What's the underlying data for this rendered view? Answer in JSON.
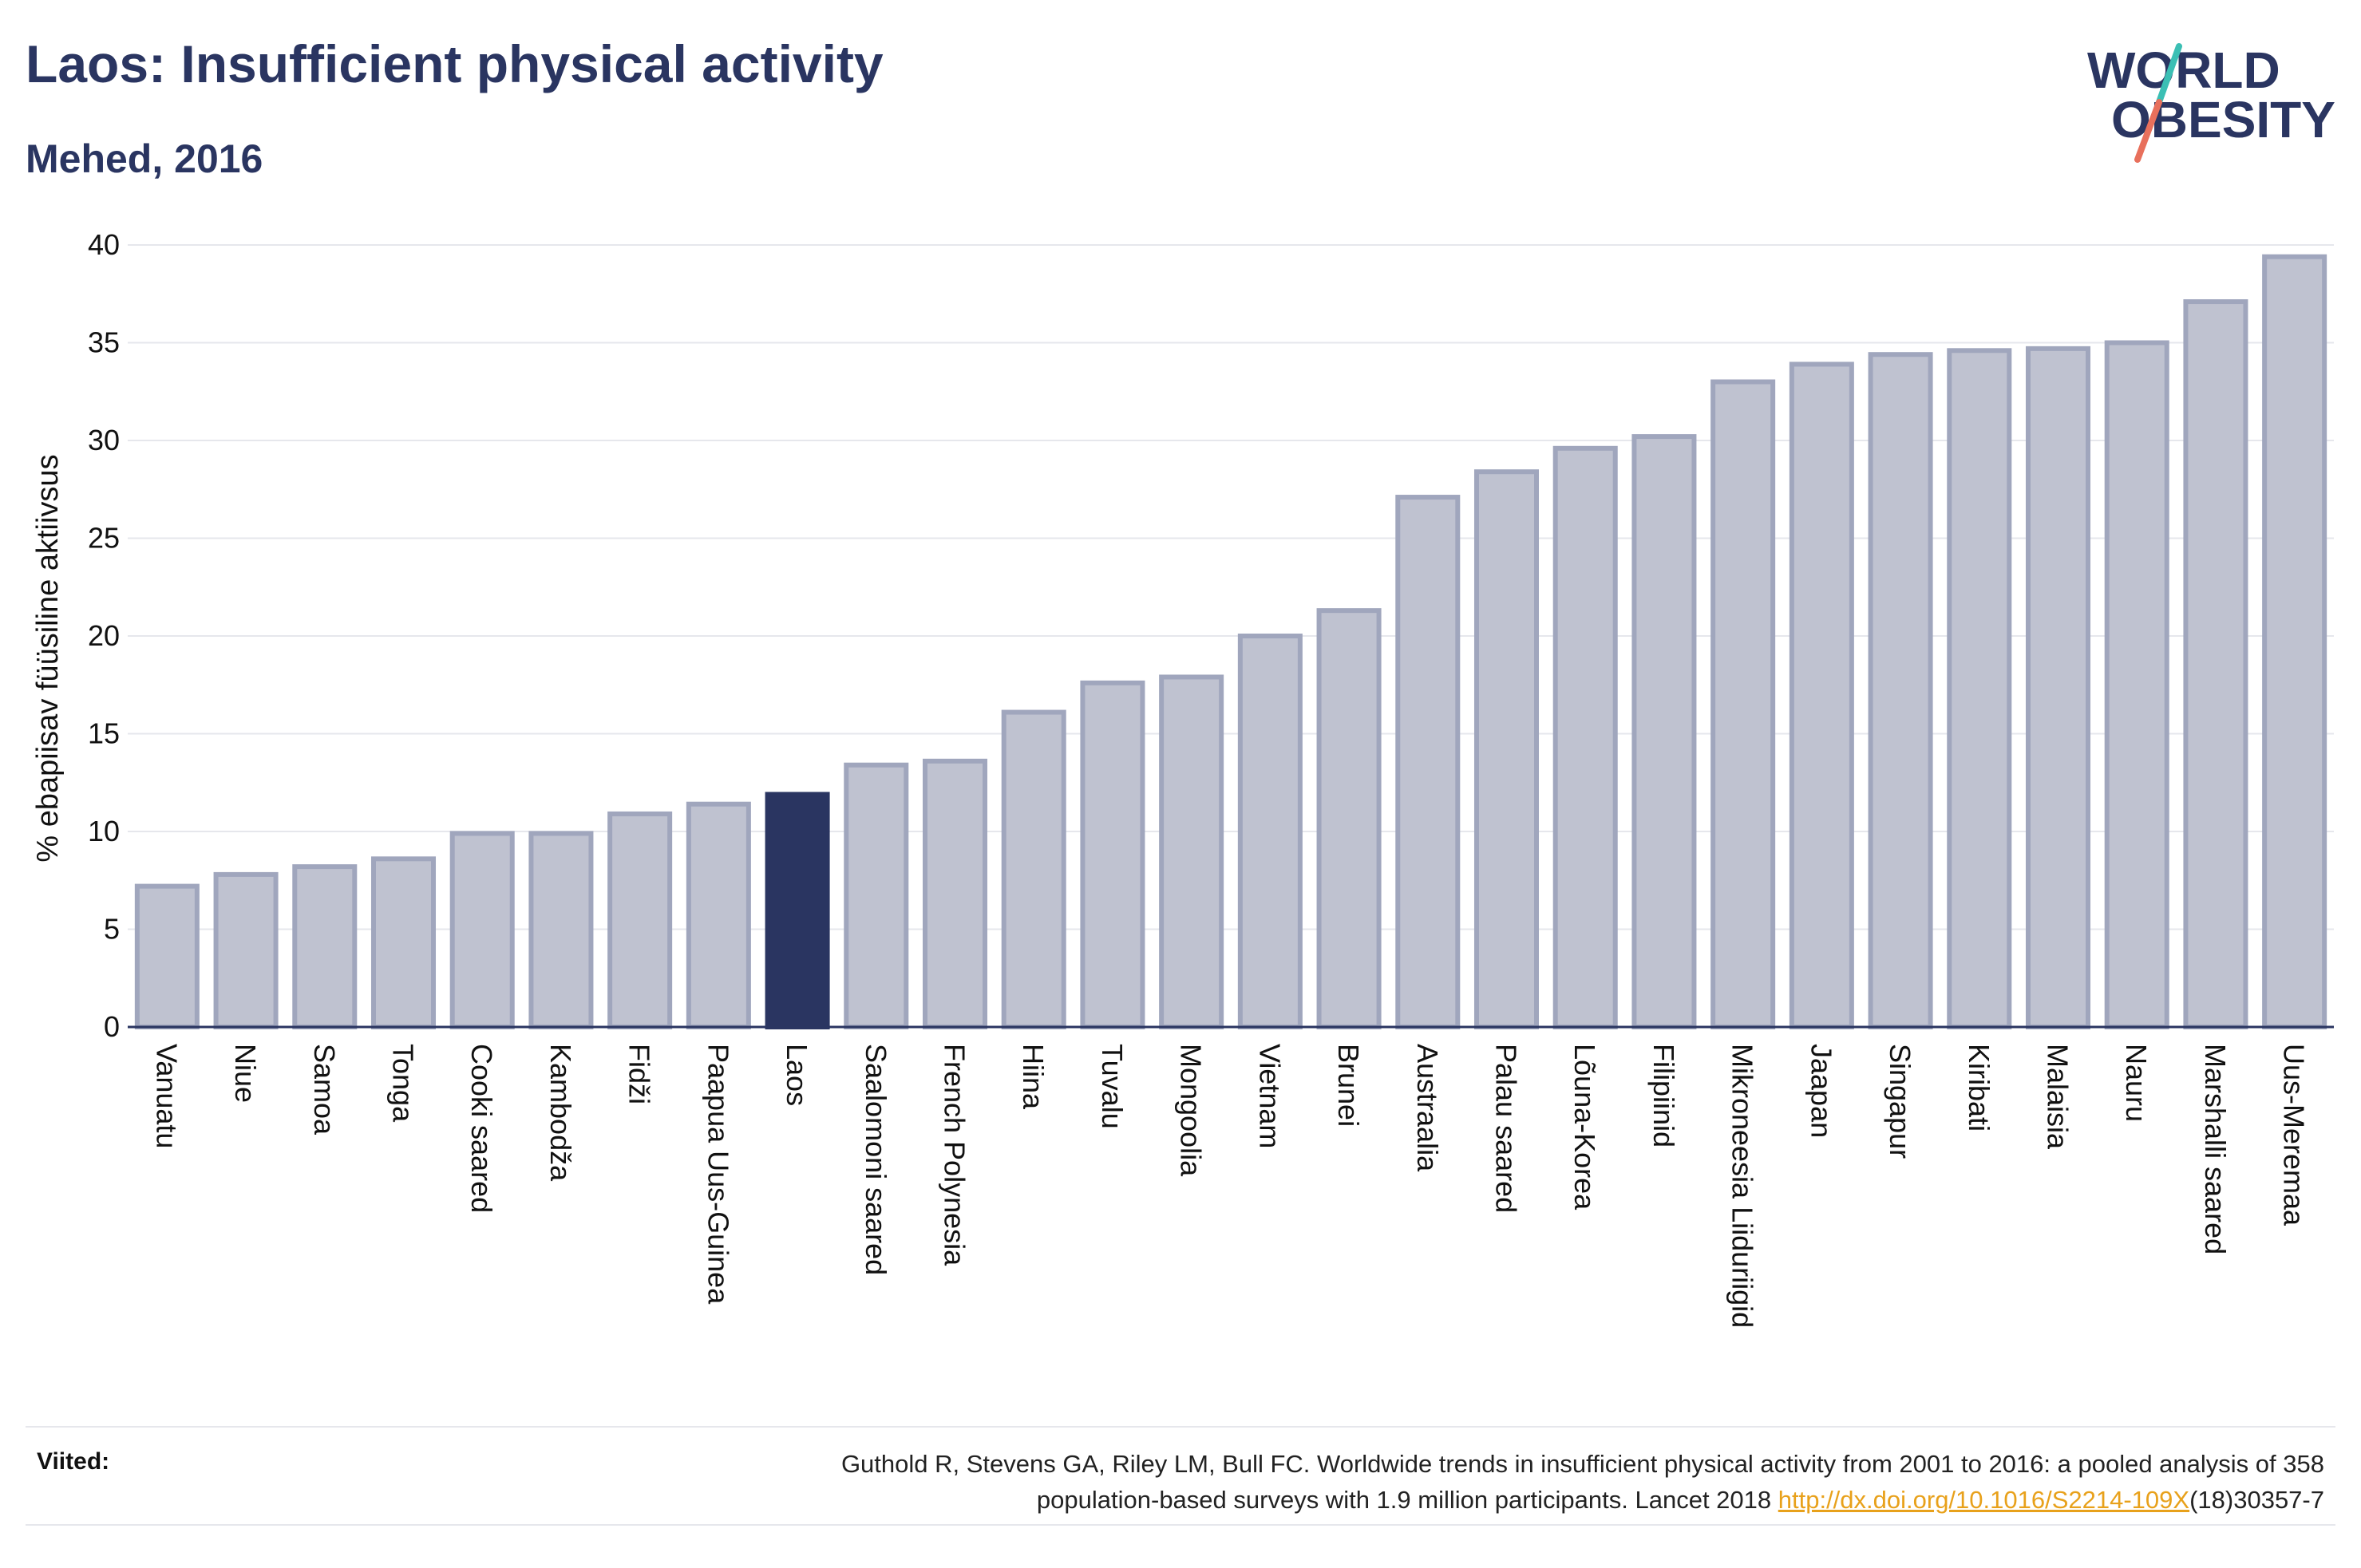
{
  "header": {
    "title": "Laos: Insufficient physical activity",
    "subtitle": "Mehed, 2016"
  },
  "logo": {
    "line1": "WORLD",
    "line2": "OBESITY",
    "icon": "slash-mark-icon"
  },
  "colors": {
    "bar": "#bfc2d0",
    "bar_border": "#a0a6bd",
    "highlight": "#2a3561",
    "grid": "#e6e7ec",
    "text": "#2a3561",
    "link": "#e8a11b"
  },
  "chart_data": {
    "type": "bar",
    "title": "Laos: Insufficient physical activity",
    "subtitle": "Mehed, 2016",
    "xlabel": "",
    "ylabel": "% ebapiisav füüsiline aktiivsus",
    "ylim": [
      0,
      40
    ],
    "yticks": [
      0,
      5,
      10,
      15,
      20,
      25,
      30,
      35,
      40
    ],
    "grid": true,
    "highlight": "Laos",
    "categories": [
      "Vanuatu",
      "Niue",
      "Samoa",
      "Tonga",
      "Cooki saared",
      "Kambodža",
      "Fidži",
      "Paapua Uus-Guinea",
      "Laos",
      "Saalomoni saared",
      "French Polynesia",
      "Hiina",
      "Tuvalu",
      "Mongoolia",
      "Vietnam",
      "Brunei",
      "Austraalia",
      "Palau saared",
      "Lõuna-Korea",
      "Filipiinid",
      "Mikroneesia Liiduriigid",
      "Jaapan",
      "Singapur",
      "Kiribati",
      "Malaisia",
      "Nauru",
      "Marshalli saared",
      "Uus-Meremaa"
    ],
    "values": [
      7.2,
      7.8,
      8.2,
      8.6,
      9.9,
      9.9,
      10.9,
      11.4,
      11.9,
      13.4,
      13.6,
      16.1,
      17.6,
      17.9,
      20.0,
      21.3,
      27.1,
      28.4,
      29.6,
      30.2,
      33.0,
      33.9,
      34.4,
      34.6,
      34.7,
      35.0,
      37.1,
      39.4
    ]
  },
  "footer": {
    "label": "Viited:",
    "citation_line1": "Guthold R, Stevens GA, Riley LM, Bull FC. Worldwide trends in insufficient physical activity from 2001 to 2016: a pooled analysis of 358",
    "citation_line2_pre": "population-based surveys with 1.9 million participants. Lancet 2018 ",
    "link_text": "http://dx.doi.org/10.1016/S2214-109X",
    "citation_line2_post": "(18)30357-7"
  }
}
